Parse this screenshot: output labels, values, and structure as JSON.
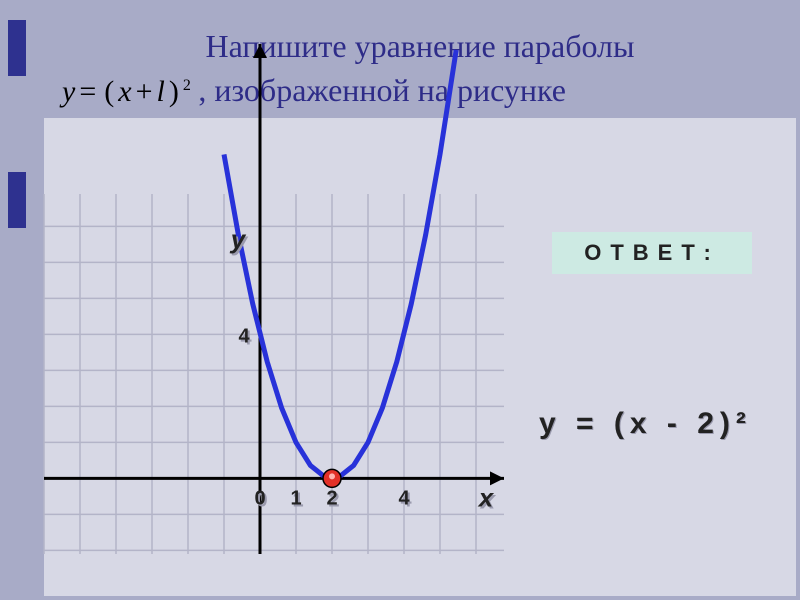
{
  "colors": {
    "page_bg": "#a8abc7",
    "panel_bg": "#d7d8e5",
    "nav_tab": "#2e318f",
    "title": "#2e2c88",
    "grid_line": "#b3b4c8",
    "axis": "#000000",
    "curve": "#2832d9",
    "vertex": "#e33128",
    "label_shadow": "#9a9aad",
    "label_fg": "#222222",
    "answer_bg": "#cdeae3"
  },
  "title_line1": "Напишите уравнение параболы",
  "title_line2": ", изображенной на рисунке",
  "formula": {
    "lhs": "y",
    "eq": "=",
    "open": "(",
    "x": "x",
    "plus": "+",
    "l": "l",
    "close": ")",
    "exp": "2"
  },
  "chart": {
    "type": "line",
    "xlim": [
      -6,
      6.8
    ],
    "ylim": [
      -2.2,
      7.6
    ],
    "grid_step": 1,
    "axis": {
      "x_label": "x",
      "y_label": "y",
      "x_ticks": [
        {
          "v": 0,
          "t": "0"
        },
        {
          "v": 1,
          "t": "1"
        },
        {
          "v": 2,
          "t": "2"
        },
        {
          "v": 4,
          "t": "4"
        }
      ],
      "y_ticks": [
        {
          "v": 4,
          "t": "4"
        }
      ]
    },
    "curve": {
      "label": "y=(x-2)^2",
      "vertex": {
        "x": 2,
        "y": 0
      },
      "color": "#2832d9",
      "line_width": 5,
      "points": [
        {
          "x": -1.0,
          "y": 9.0
        },
        {
          "x": -0.6,
          "y": 6.76
        },
        {
          "x": -0.2,
          "y": 4.84
        },
        {
          "x": 0.2,
          "y": 3.24
        },
        {
          "x": 0.6,
          "y": 1.96
        },
        {
          "x": 1.0,
          "y": 1.0
        },
        {
          "x": 1.4,
          "y": 0.36
        },
        {
          "x": 1.8,
          "y": 0.04
        },
        {
          "x": 2.0,
          "y": 0.0
        },
        {
          "x": 2.2,
          "y": 0.04
        },
        {
          "x": 2.6,
          "y": 0.36
        },
        {
          "x": 3.0,
          "y": 1.0
        },
        {
          "x": 3.4,
          "y": 1.96
        },
        {
          "x": 3.8,
          "y": 3.24
        },
        {
          "x": 4.2,
          "y": 4.84
        },
        {
          "x": 4.6,
          "y": 6.76
        },
        {
          "x": 5.0,
          "y": 9.0
        },
        {
          "x": 5.45,
          "y": 11.9
        }
      ]
    }
  },
  "answer_label": "ОТВЕТ:",
  "answer_equation": "y = (x - 2)²",
  "typography": {
    "title_fontsize": 32,
    "formula_fontsize": 30,
    "tick_fontsize": 20,
    "axis_label_fontsize": 26,
    "answer_badge_fontsize": 22,
    "answer_eq_fontsize": 30
  }
}
